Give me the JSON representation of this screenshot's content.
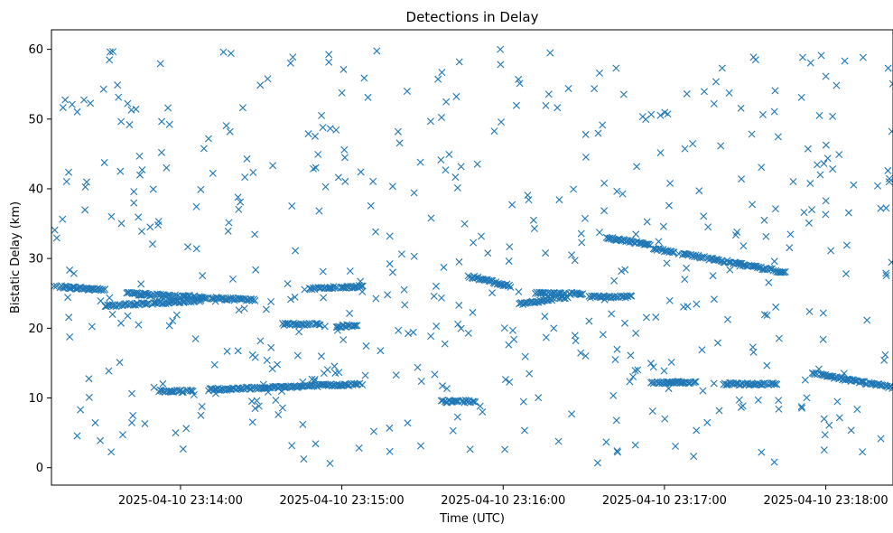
{
  "chart_data": {
    "type": "scatter",
    "title": "Detections in Delay",
    "xlabel": "Time (UTC)",
    "ylabel": "Bistatic Delay (km)",
    "marker": "x",
    "color": "#1f77b4",
    "grid": false,
    "legend": "none",
    "xlim": [
      "2025-04-10 23:13:12",
      "2025-04-10 23:18:25"
    ],
    "ylim": [
      -2.5,
      62.8
    ],
    "x_ticks": [
      "2025-04-10 23:14:00",
      "2025-04-10 23:15:00",
      "2025-04-10 23:16:00",
      "2025-04-10 23:17:00",
      "2025-04-10 23:18:00"
    ],
    "y_ticks": [
      0,
      10,
      20,
      30,
      40,
      50,
      60
    ],
    "tracks": [
      {
        "t_start": "2025-04-10 23:13:13",
        "t_end": "2025-04-10 23:13:32",
        "delay_start": 26.0,
        "delay_end": 25.5
      },
      {
        "t_start": "2025-04-10 23:13:32",
        "t_end": "2025-04-10 23:14:08",
        "delay_start": 23.2,
        "delay_end": 24.0
      },
      {
        "t_start": "2025-04-10 23:13:40",
        "t_end": "2025-04-10 23:14:28",
        "delay_start": 25.0,
        "delay_end": 24.0
      },
      {
        "t_start": "2025-04-10 23:13:52",
        "t_end": "2025-04-10 23:14:05",
        "delay_start": 11.0,
        "delay_end": 11.0
      },
      {
        "t_start": "2025-04-10 23:14:10",
        "t_end": "2025-04-10 23:15:08",
        "delay_start": 11.2,
        "delay_end": 12.0
      },
      {
        "t_start": "2025-04-10 23:14:38",
        "t_end": "2025-04-10 23:14:52",
        "delay_start": 20.6,
        "delay_end": 20.6
      },
      {
        "t_start": "2025-04-10 23:14:48",
        "t_end": "2025-04-10 23:15:08",
        "delay_start": 25.7,
        "delay_end": 26.0
      },
      {
        "t_start": "2025-04-10 23:14:58",
        "t_end": "2025-04-10 23:15:06",
        "delay_start": 20.3,
        "delay_end": 20.3
      },
      {
        "t_start": "2025-04-10 23:15:37",
        "t_end": "2025-04-10 23:15:50",
        "delay_start": 9.5,
        "delay_end": 9.5
      },
      {
        "t_start": "2025-04-10 23:15:47",
        "t_end": "2025-04-10 23:16:03",
        "delay_start": 27.5,
        "delay_end": 26.0
      },
      {
        "t_start": "2025-04-10 23:16:06",
        "t_end": "2025-04-10 23:16:24",
        "delay_start": 23.5,
        "delay_end": 24.5
      },
      {
        "t_start": "2025-04-10 23:16:12",
        "t_end": "2025-04-10 23:16:30",
        "delay_start": 25.0,
        "delay_end": 25.0
      },
      {
        "t_start": "2025-04-10 23:16:32",
        "t_end": "2025-04-10 23:16:48",
        "delay_start": 24.5,
        "delay_end": 24.5
      },
      {
        "t_start": "2025-04-10 23:16:38",
        "t_end": "2025-04-10 23:16:55",
        "delay_start": 33.0,
        "delay_end": 32.0
      },
      {
        "t_start": "2025-04-10 23:16:55",
        "t_end": "2025-04-10 23:17:45",
        "delay_start": 31.5,
        "delay_end": 28.0
      },
      {
        "t_start": "2025-04-10 23:16:55",
        "t_end": "2025-04-10 23:17:12",
        "delay_start": 12.2,
        "delay_end": 12.2
      },
      {
        "t_start": "2025-04-10 23:17:22",
        "t_end": "2025-04-10 23:17:42",
        "delay_start": 12.0,
        "delay_end": 12.0
      },
      {
        "t_start": "2025-04-10 23:17:55",
        "t_end": "2025-04-10 23:18:25",
        "delay_start": 13.5,
        "delay_end": 11.5
      }
    ],
    "background_detections": {
      "count": 520,
      "delay_range": [
        0.5,
        60.0
      ],
      "t_range": [
        "2025-04-10 23:13:13",
        "2025-04-10 23:18:25"
      ]
    }
  }
}
